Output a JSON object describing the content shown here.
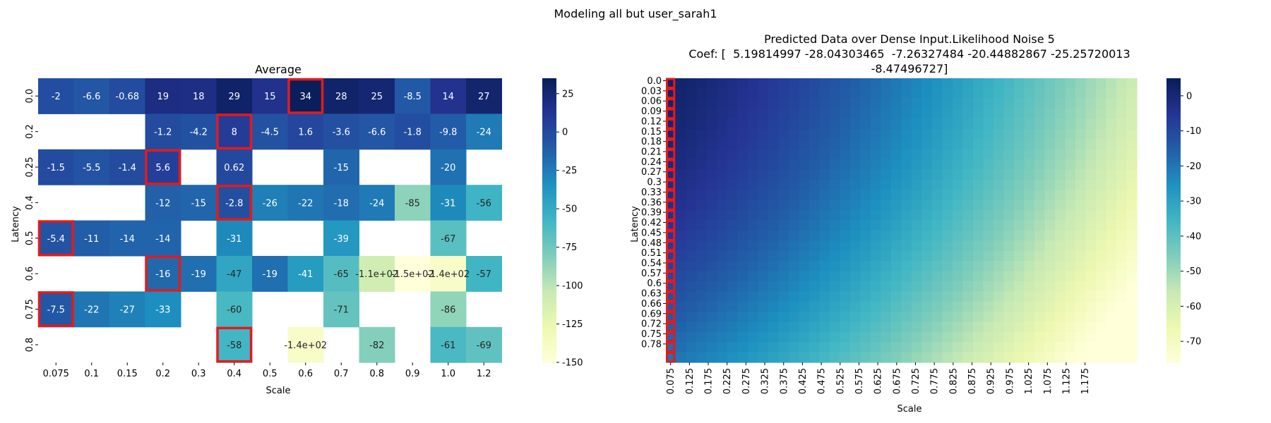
{
  "figure": {
    "suptitle": "Modeling all but user_sarah1"
  },
  "chart_data": [
    {
      "type": "heatmap",
      "title": "Average",
      "xlabel": "Scale",
      "ylabel": "Latency",
      "x_categories": [
        "0.075",
        "0.1",
        "0.15",
        "0.2",
        "0.3",
        "0.4",
        "0.5",
        "0.6",
        "0.7",
        "0.8",
        "0.9",
        "1.0",
        "1.2"
      ],
      "y_categories": [
        "0.0",
        "0.2",
        "0.25",
        "0.4",
        "0.5",
        "0.6",
        "0.75",
        "0.8"
      ],
      "values": [
        [
          -2,
          -6.6,
          -0.68,
          19,
          18,
          29,
          15,
          34,
          28,
          25,
          -8.5,
          14,
          27
        ],
        [
          null,
          null,
          null,
          -1.2,
          -4.2,
          8,
          -4.5,
          1.6,
          -3.6,
          -6.6,
          -1.8,
          -9.8,
          -24
        ],
        [
          -1.5,
          -5.5,
          -1.4,
          5.6,
          null,
          0.62,
          null,
          null,
          -15,
          null,
          null,
          -20,
          null
        ],
        [
          null,
          null,
          null,
          -12,
          -15,
          -2.8,
          -26,
          -22,
          -18,
          -24,
          -85,
          -31,
          -56
        ],
        [
          -5.4,
          -11,
          -14,
          -14,
          null,
          -31,
          null,
          null,
          -39,
          null,
          null,
          -67,
          null
        ],
        [
          null,
          null,
          null,
          -16,
          -19,
          -47,
          -19,
          -41,
          -65,
          -110,
          -150,
          -140,
          -57
        ],
        [
          -7.5,
          -22,
          -27,
          -33,
          null,
          -60,
          null,
          null,
          -71,
          null,
          null,
          -86,
          null
        ],
        [
          null,
          null,
          null,
          null,
          null,
          -58,
          null,
          -140,
          null,
          -82,
          null,
          -61,
          -69
        ]
      ],
      "annotations": [
        [
          "-2",
          "-6.6",
          "-0.68",
          "19",
          "18",
          "29",
          "15",
          "34",
          "28",
          "25",
          "-8.5",
          "14",
          "27"
        ],
        [
          "",
          "",
          "",
          "-1.2",
          "-4.2",
          "8",
          "-4.5",
          "1.6",
          "-3.6",
          "-6.6",
          "-1.8",
          "-9.8",
          "-24"
        ],
        [
          "-1.5",
          "-5.5",
          "-1.4",
          "5.6",
          "",
          "0.62",
          "",
          "",
          "-15",
          "",
          "",
          "-20",
          ""
        ],
        [
          "",
          "",
          "",
          "-12",
          "-15",
          "-2.8",
          "-26",
          "-22",
          "-18",
          "-24",
          "-85",
          "-31",
          "-56"
        ],
        [
          "-5.4",
          "-11",
          "-14",
          "-14",
          "",
          "-31",
          "",
          "",
          "-39",
          "",
          "",
          "-67",
          ""
        ],
        [
          "",
          "",
          "",
          "-16",
          "-19",
          "-47",
          "-19",
          "-41",
          "-65",
          "-1.1e+02",
          "-1.5e+02",
          "-1.4e+02",
          "-57"
        ],
        [
          "-7.5",
          "-22",
          "-27",
          "-33",
          "",
          "-60",
          "",
          "",
          "-71",
          "",
          "",
          "-86",
          ""
        ],
        [
          "",
          "",
          "",
          "",
          "",
          "-58",
          "",
          "-1.4e+02",
          "",
          "-82",
          "",
          "-61",
          "-69"
        ]
      ],
      "highlighted_cells": [
        [
          0,
          7
        ],
        [
          1,
          5
        ],
        [
          2,
          3
        ],
        [
          3,
          5
        ],
        [
          4,
          0
        ],
        [
          5,
          3
        ],
        [
          6,
          0
        ],
        [
          7,
          5
        ]
      ],
      "highlight_color": "#e41a1c",
      "colorscale": "YlGnBu",
      "vmin": -150,
      "vmax": 35,
      "colorbar_ticks": [
        25,
        0,
        -25,
        -50,
        -75,
        -100,
        -125,
        -150
      ]
    },
    {
      "type": "heatmap",
      "title": "Predicted Data over Dense Input.Likelihood Noise 5",
      "title_lines": [
        "Predicted Data over Dense Input.Likelihood Noise 5",
        "Coef: [  5.19814997 -28.04303465  -7.26327484 -20.44882867 -25.25720013",
        "-8.47496727]"
      ],
      "xlabel": "Scale",
      "ylabel": "Latency",
      "x_tick_labels": [
        "0.075",
        "0.125",
        "0.175",
        "0.225",
        "0.275",
        "0.325",
        "0.375",
        "0.425",
        "0.475",
        "0.525",
        "0.575",
        "0.625",
        "0.675",
        "0.725",
        "0.775",
        "0.825",
        "0.875",
        "0.925",
        "0.975",
        "1.025",
        "1.075",
        "1.125",
        "1.175"
      ],
      "y_tick_labels": [
        "0.0",
        "0.03",
        "0.06",
        "0.09",
        "0.12",
        "0.15",
        "0.18",
        "0.21",
        "0.24",
        "0.27",
        "0.3",
        "0.33",
        "0.36",
        "0.39",
        "0.42",
        "0.45",
        "0.48",
        "0.51",
        "0.54",
        "0.57",
        "0.6",
        "0.63",
        "0.66",
        "0.69",
        "0.72",
        "0.75",
        "0.78"
      ],
      "x_range": [
        0.075,
        1.2
      ],
      "y_range": [
        0.0,
        0.8
      ],
      "coefficients": [
        5.19814997,
        -28.04303465,
        -7.26327484,
        -20.44882867,
        -25.25720013,
        -8.47496727
      ],
      "highlighted_column": "0.075",
      "highlight_color": "#e41a1c",
      "colorscale": "YlGnBu",
      "vmin": -76,
      "vmax": 5,
      "colorbar_ticks": [
        0,
        -10,
        -20,
        -30,
        -40,
        -50,
        -60,
        -70
      ]
    }
  ]
}
